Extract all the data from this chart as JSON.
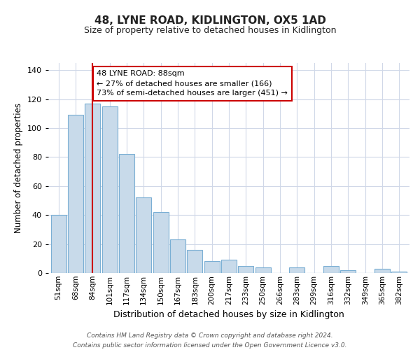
{
  "title": "48, LYNE ROAD, KIDLINGTON, OX5 1AD",
  "subtitle": "Size of property relative to detached houses in Kidlington",
  "xlabel": "Distribution of detached houses by size in Kidlington",
  "ylabel": "Number of detached properties",
  "bar_labels": [
    "51sqm",
    "68sqm",
    "84sqm",
    "101sqm",
    "117sqm",
    "134sqm",
    "150sqm",
    "167sqm",
    "183sqm",
    "200sqm",
    "217sqm",
    "233sqm",
    "250sqm",
    "266sqm",
    "283sqm",
    "299sqm",
    "316sqm",
    "332sqm",
    "349sqm",
    "365sqm",
    "382sqm"
  ],
  "bar_values": [
    40,
    109,
    117,
    115,
    82,
    52,
    42,
    23,
    16,
    8,
    9,
    5,
    4,
    0,
    4,
    0,
    5,
    2,
    0,
    3,
    1
  ],
  "bar_color": "#c8daea",
  "bar_edge_color": "#7bafd4",
  "vline_x_index": 2,
  "vline_color": "#cc0000",
  "ylim": [
    0,
    145
  ],
  "yticks": [
    0,
    20,
    40,
    60,
    80,
    100,
    120,
    140
  ],
  "annotation_text": "48 LYNE ROAD: 88sqm\n← 27% of detached houses are smaller (166)\n73% of semi-detached houses are larger (451) →",
  "annotation_box_color": "#ffffff",
  "annotation_box_edge": "#cc0000",
  "footer_line1": "Contains HM Land Registry data © Crown copyright and database right 2024.",
  "footer_line2": "Contains public sector information licensed under the Open Government Licence v3.0.",
  "background_color": "#ffffff",
  "grid_color": "#d0d8e8"
}
